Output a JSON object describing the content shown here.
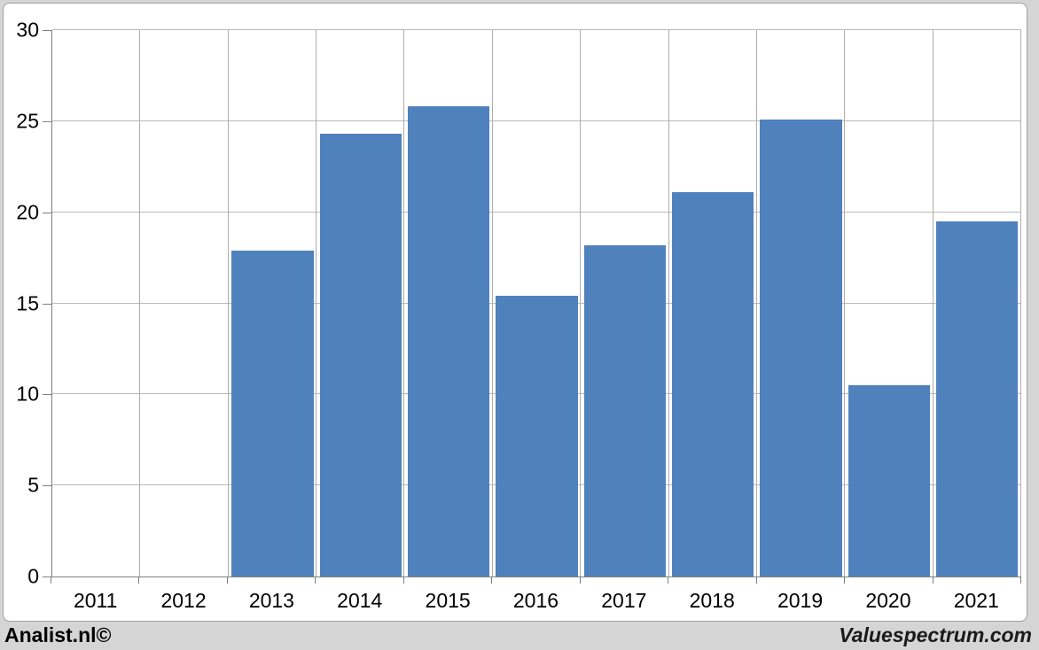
{
  "chart_data": {
    "type": "bar",
    "title": "",
    "xlabel": "",
    "ylabel": "",
    "categories": [
      "2011",
      "2012",
      "2013",
      "2014",
      "2015",
      "2016",
      "2017",
      "2018",
      "2019",
      "2020",
      "2021"
    ],
    "values": [
      null,
      null,
      17.9,
      24.3,
      25.8,
      15.4,
      18.2,
      21.1,
      25.1,
      10.5,
      19.5
    ],
    "ylim": [
      0,
      30
    ],
    "yticks": [
      0,
      5,
      10,
      15,
      20,
      25,
      30
    ],
    "grid": true,
    "legend": "none",
    "bar_color": "#4f81bd"
  },
  "footer": {
    "left": "Analist.nl©",
    "right": "Valuespectrum.com"
  },
  "colors": {
    "background": "#d5d5d5",
    "plot_background": "#ffffff",
    "frame_border": "#9f9f9f",
    "h_gridline": "#b9b9b9",
    "v_gridline": "#adadad",
    "axis_line": "#7f7f7f",
    "bar": "#4f81bd",
    "text": "#000000"
  }
}
